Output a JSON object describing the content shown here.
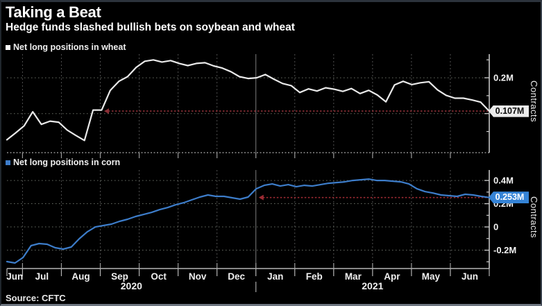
{
  "header": {
    "title": "Taking a Beat",
    "subtitle": "Hedge funds slashed bullish bets on soybean and wheat"
  },
  "source": "Source: CFTC",
  "x_axis": {
    "months": [
      "Jun",
      "Jul",
      "Aug",
      "Sep",
      "Oct",
      "Nov",
      "Dec",
      "Jan",
      "Feb",
      "Mar",
      "Apr",
      "May",
      "Jun"
    ],
    "first_slot_frac": 0.4,
    "years": [
      {
        "label": "2020",
        "from_month": 0,
        "to_month": 6
      },
      {
        "label": "2021",
        "from_month": 7,
        "to_month": 12
      }
    ],
    "year_separator_after_month": 6
  },
  "chart_data": [
    {
      "type": "line",
      "title": "Net long positions in wheat",
      "legend": "Net long positions in wheat",
      "unit": "M contracts",
      "x_range": [
        "Jun 2020",
        "Jun 2021"
      ],
      "ylim": [
        -0.009,
        0.266
      ],
      "yticks": [
        {
          "value": 0.2,
          "label": "0.2M"
        },
        {
          "value": 0.1,
          "label": "0.1M"
        }
      ],
      "minor_yticks": [
        0.25,
        0.15,
        0.05
      ],
      "gridline_values": [
        0.2,
        0.1
      ],
      "axis_title": "Contracts",
      "legend_swatch_color": "#ffffff",
      "line_color": "#e9e9e9",
      "badge_bg": "#ececec",
      "badge_fg": "#0a0a0a",
      "current_value": 0.107,
      "current_label": "0.107M",
      "arrow": {
        "value": 0.107,
        "tip_frac": 0.2014,
        "color": "#8b2f36"
      },
      "values": [
        0.027,
        0.046,
        0.066,
        0.105,
        0.07,
        0.079,
        0.076,
        0.054,
        0.039,
        0.025,
        0.11,
        0.11,
        0.165,
        0.19,
        0.203,
        0.229,
        0.246,
        0.25,
        0.244,
        0.248,
        0.24,
        0.234,
        0.24,
        0.242,
        0.233,
        0.227,
        0.217,
        0.203,
        0.198,
        0.2,
        0.209,
        0.196,
        0.184,
        0.178,
        0.159,
        0.169,
        0.163,
        0.172,
        0.168,
        0.162,
        0.17,
        0.156,
        0.165,
        0.152,
        0.133,
        0.18,
        0.19,
        0.181,
        0.186,
        0.189,
        0.166,
        0.151,
        0.143,
        0.143,
        0.138,
        0.132,
        0.107
      ]
    },
    {
      "type": "line",
      "title": "Net long positions in corn",
      "legend": "Net long positions in corn",
      "unit": "M contracts",
      "x_range": [
        "Jun 2020",
        "Jun 2021"
      ],
      "ylim": [
        -0.358,
        0.49
      ],
      "yticks": [
        {
          "value": 0.4,
          "label": "0.4M"
        },
        {
          "value": 0.2,
          "label": "0.2M"
        },
        {
          "value": 0,
          "label": "0"
        },
        {
          "value": -0.2,
          "label": "-0.2M"
        }
      ],
      "minor_yticks": [
        0.3,
        0.1,
        -0.1,
        -0.3
      ],
      "gridline_values": [
        0.4,
        0.2,
        0,
        -0.2
      ],
      "axis_title": "Contracts",
      "legend_swatch_color": "#3d7dca",
      "line_color": "#3d7dca",
      "badge_bg": "#3583d6",
      "badge_fg": "#ffffff",
      "current_value": 0.253,
      "current_label": "0.253M",
      "arrow": {
        "value": 0.253,
        "tip_frac": 0.522,
        "color": "#9c2b33"
      },
      "values": [
        -0.298,
        -0.31,
        -0.263,
        -0.161,
        -0.143,
        -0.149,
        -0.179,
        -0.191,
        -0.173,
        -0.101,
        -0.042,
        0.0,
        0.012,
        0.024,
        0.048,
        0.066,
        0.09,
        0.107,
        0.125,
        0.149,
        0.167,
        0.191,
        0.209,
        0.233,
        0.257,
        0.275,
        0.263,
        0.263,
        0.251,
        0.239,
        0.257,
        0.328,
        0.358,
        0.37,
        0.352,
        0.364,
        0.346,
        0.358,
        0.352,
        0.364,
        0.376,
        0.382,
        0.388,
        0.4,
        0.406,
        0.412,
        0.4,
        0.4,
        0.394,
        0.388,
        0.37,
        0.328,
        0.304,
        0.292,
        0.275,
        0.269,
        0.263,
        0.281,
        0.275,
        0.263,
        0.253
      ]
    }
  ]
}
